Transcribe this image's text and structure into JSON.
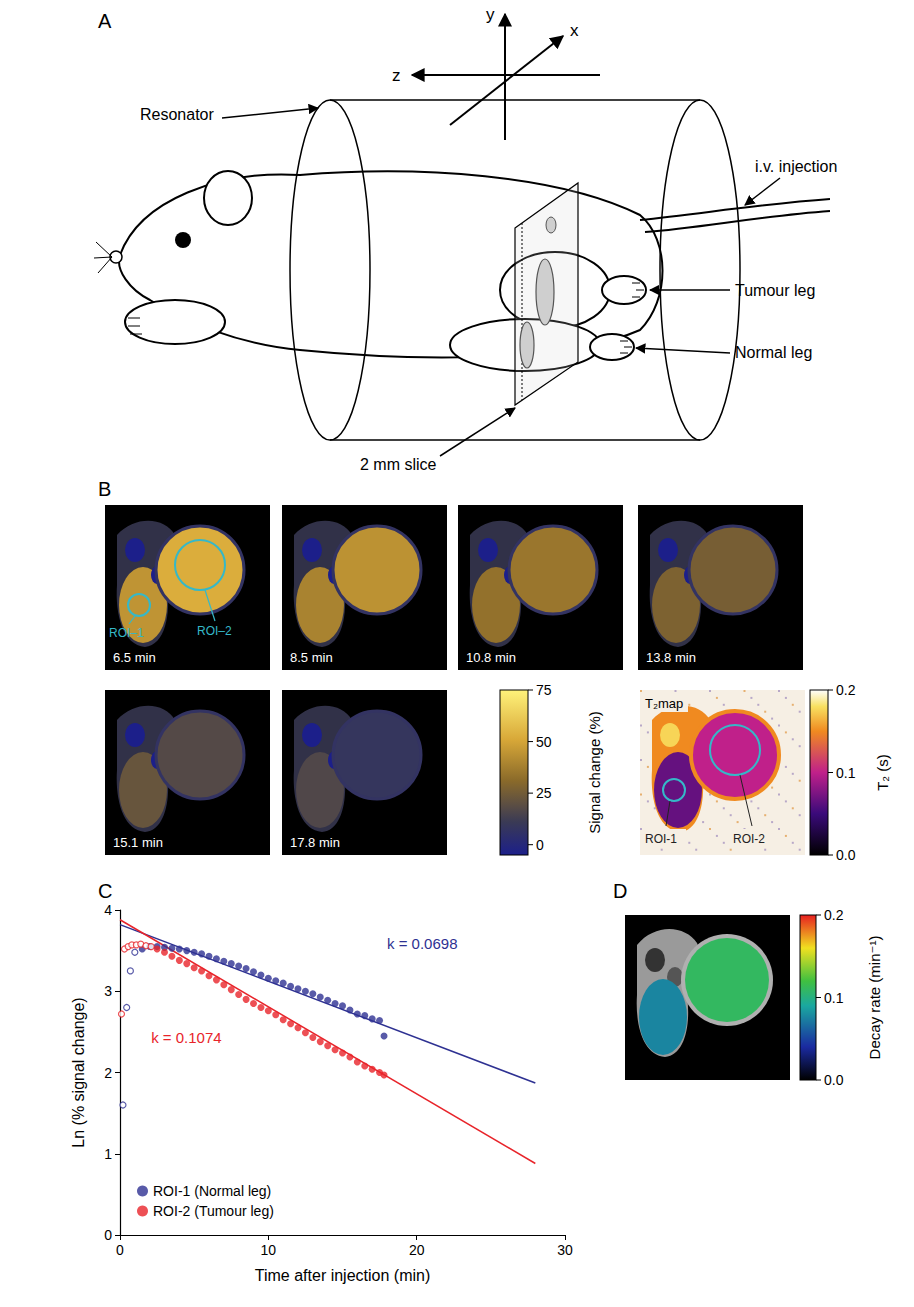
{
  "panel_a": {
    "letter": "A",
    "axis_labels": {
      "x": "x",
      "y": "y",
      "z": "z"
    },
    "labels": {
      "resonator": "Resonator",
      "injection": "i.v. injection",
      "tumour_leg": "Tumour leg",
      "normal_leg": "Normal leg",
      "slice": "2 mm slice"
    }
  },
  "panel_b": {
    "letter": "B",
    "frames": [
      "6.5 min",
      "8.5 min",
      "10.8 min",
      "13.8 min",
      "15.1 min",
      "17.8 min"
    ],
    "roi_labels": [
      "ROI–1",
      "ROI–2"
    ],
    "colorbar": {
      "label": "Signal change (%)",
      "range": [
        -5,
        75
      ],
      "ticks": [
        0,
        25,
        50,
        75
      ]
    },
    "t2_map": {
      "title": "T₂map",
      "roi_labels": [
        "ROI-1",
        "ROI-2"
      ],
      "colorbar": {
        "label": "T₂ (s)",
        "range": [
          0,
          0.2
        ],
        "ticks": [
          {
            "value": 0,
            "label": "0.0"
          },
          {
            "value": 0.1,
            "label": "0.1"
          },
          {
            "value": 0.2,
            "label": "0.2"
          }
        ]
      }
    }
  },
  "chart_data": {
    "letter": "C",
    "type": "scatter",
    "xlabel": "Time after injection (min)",
    "ylabel": "Ln (% signal change)",
    "xlim": [
      0,
      30
    ],
    "xticks": [
      0,
      10,
      20,
      30
    ],
    "ylim": [
      0,
      4
    ],
    "yticks": [
      0,
      1,
      2,
      3,
      4
    ],
    "grid": false,
    "legend": "lower left",
    "series": [
      {
        "name": "ROI-1 (Normal leg)",
        "color": "#2e3192",
        "marker": "circle",
        "annotation": "k = 0.0698",
        "x": [
          1.5,
          2,
          2.5,
          3,
          3.5,
          4,
          4.5,
          5,
          5.5,
          6,
          6.5,
          7,
          7.5,
          8,
          8.5,
          9,
          9.5,
          10,
          10.5,
          11,
          11.5,
          12,
          12.5,
          13,
          13.5,
          14,
          14.5,
          15,
          15.5,
          16,
          16.5,
          17,
          17.5,
          17.8
        ],
        "values": [
          3.52,
          3.55,
          3.55,
          3.54,
          3.53,
          3.52,
          3.5,
          3.48,
          3.46,
          3.43,
          3.4,
          3.37,
          3.34,
          3.31,
          3.28,
          3.24,
          3.2,
          3.16,
          3.13,
          3.1,
          3.06,
          3.03,
          3.0,
          2.97,
          2.93,
          2.89,
          2.85,
          2.82,
          2.77,
          2.72,
          2.7,
          2.66,
          2.64,
          2.45
        ],
        "open_x": [
          0.2,
          0.45,
          0.7,
          1.0
        ],
        "open_values": [
          1.6,
          2.8,
          3.25,
          3.48
        ],
        "fit": {
          "x": [
            0,
            28
          ],
          "values": [
            3.82,
            1.87
          ]
        }
      },
      {
        "name": "ROI-2 (Tumour leg)",
        "color": "#e8242a",
        "marker": "circle",
        "annotation": "k = 0.1074",
        "x": [
          2.5,
          3,
          3.5,
          4,
          4.5,
          5,
          5.5,
          6,
          6.5,
          7,
          7.5,
          8,
          8.5,
          9,
          9.5,
          10,
          10.5,
          11,
          11.5,
          12,
          12.5,
          13,
          13.5,
          14,
          14.5,
          15,
          15.5,
          16,
          16.5,
          17,
          17.5,
          17.8
        ],
        "values": [
          3.52,
          3.48,
          3.43,
          3.38,
          3.34,
          3.29,
          3.25,
          3.19,
          3.14,
          3.08,
          3.02,
          2.96,
          2.9,
          2.85,
          2.8,
          2.76,
          2.71,
          2.65,
          2.6,
          2.55,
          2.49,
          2.43,
          2.38,
          2.33,
          2.28,
          2.24,
          2.19,
          2.13,
          2.08,
          2.04,
          2.0,
          1.97
        ],
        "open_x": [
          0.1,
          0.3,
          0.55,
          0.8,
          1.1,
          1.4,
          1.75,
          2.1
        ],
        "open_values": [
          2.72,
          3.52,
          3.55,
          3.57,
          3.57,
          3.58,
          3.56,
          3.55
        ],
        "fit": {
          "x": [
            0,
            28
          ],
          "values": [
            3.88,
            0.88
          ]
        }
      }
    ]
  },
  "panel_d": {
    "letter": "D",
    "colorbar": {
      "label": "Decay rate (min⁻¹)",
      "range": [
        0,
        0.2
      ],
      "ticks": [
        {
          "value": 0,
          "label": "0.0"
        },
        {
          "value": 0.1,
          "label": "0.1"
        },
        {
          "value": 0.2,
          "label": "0.2"
        }
      ]
    }
  }
}
